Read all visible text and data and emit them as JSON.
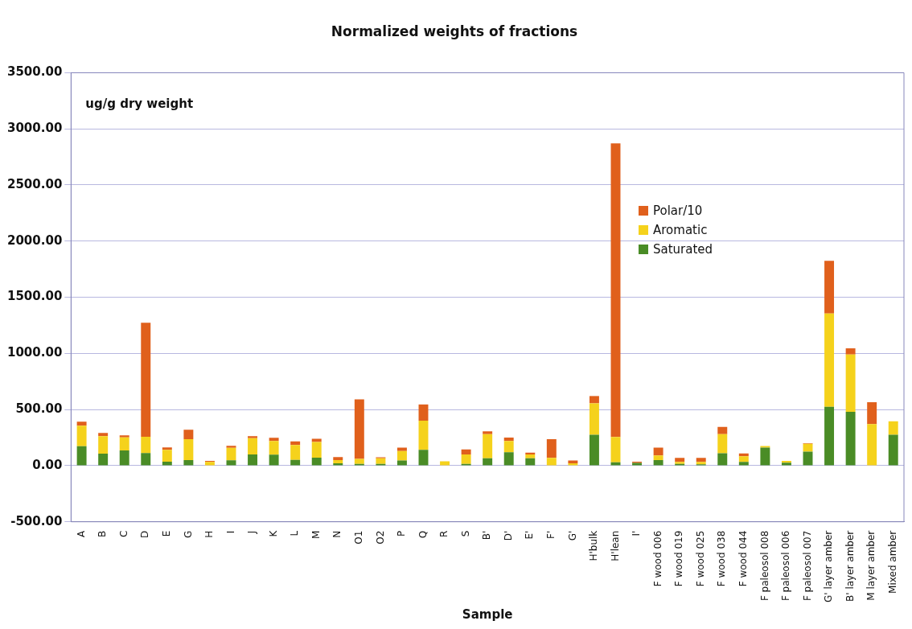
{
  "chart_data": {
    "type": "bar",
    "title": "Normalized weights of fractions",
    "xlabel": "Sample",
    "annotations": [
      "ug/g dry weight"
    ],
    "categories": [
      "A",
      "B",
      "C",
      "D",
      "E",
      "G",
      "H",
      "I",
      "J",
      "K",
      "L",
      "M",
      "N",
      "O1",
      "O2",
      "P",
      "Q",
      "R",
      "S",
      "B'",
      "D'",
      "E'",
      "F'",
      "G'",
      "H'bulk",
      "H'lean",
      "I'",
      "F wood 006",
      "F wood 019",
      "F wood 025",
      "F wood 038",
      "F wood 044",
      "F paleosol 008",
      "F paleosol 006",
      "F paleosol 007",
      "G' layer amber",
      "B' layer amber",
      "M layer amber",
      "Mixed amber"
    ],
    "stacked": true,
    "series": [
      {
        "name": "Saturated",
        "color": "#4a8c26",
        "values": [
          173,
          107,
          136,
          113,
          36,
          49,
          null,
          47,
          100,
          98,
          51,
          71,
          20,
          15,
          15,
          45,
          140,
          0,
          15,
          65,
          120,
          65,
          null,
          null,
          275,
          30,
          25,
          50,
          16,
          11,
          110,
          33,
          160,
          27,
          125,
          525,
          480,
          0,
          275
        ]
      },
      {
        "name": "Aromatic",
        "color": "#f5d21c",
        "values": [
          183,
          156,
          115,
          145,
          104,
          187,
          33,
          111,
          145,
          122,
          132,
          140,
          29,
          45,
          50,
          85,
          260,
          38,
          85,
          215,
          100,
          35,
          70,
          20,
          280,
          225,
          null,
          40,
          17,
          22,
          170,
          50,
          15,
          15,
          70,
          830,
          510,
          370,
          120
        ]
      },
      {
        "name": "Polar/10",
        "color": "#e0601c",
        "values": [
          35,
          28,
          18,
          1015,
          23,
          84,
          9,
          18,
          18,
          29,
          33,
          29,
          27,
          530,
          10,
          30,
          145,
          0,
          45,
          25,
          30,
          15,
          165,
          25,
          65,
          2615,
          10,
          70,
          36,
          36,
          65,
          25,
          0,
          0,
          5,
          470,
          55,
          195,
          0
        ]
      }
    ],
    "ylim": [
      -500,
      3500
    ],
    "yticks": [
      {
        "value": -500,
        "label": "-500.00"
      },
      {
        "value": 0,
        "label": "0.00"
      },
      {
        "value": 500,
        "label": "500.00"
      },
      {
        "value": 1000,
        "label": "1000.00"
      },
      {
        "value": 1500,
        "label": "1500.00"
      },
      {
        "value": 2000,
        "label": "2000.00"
      },
      {
        "value": 2500,
        "label": "2500.00"
      },
      {
        "value": 3000,
        "label": "3000.00"
      },
      {
        "value": 3500,
        "label": "3500.00"
      }
    ],
    "grid": "y",
    "legend": "right"
  }
}
